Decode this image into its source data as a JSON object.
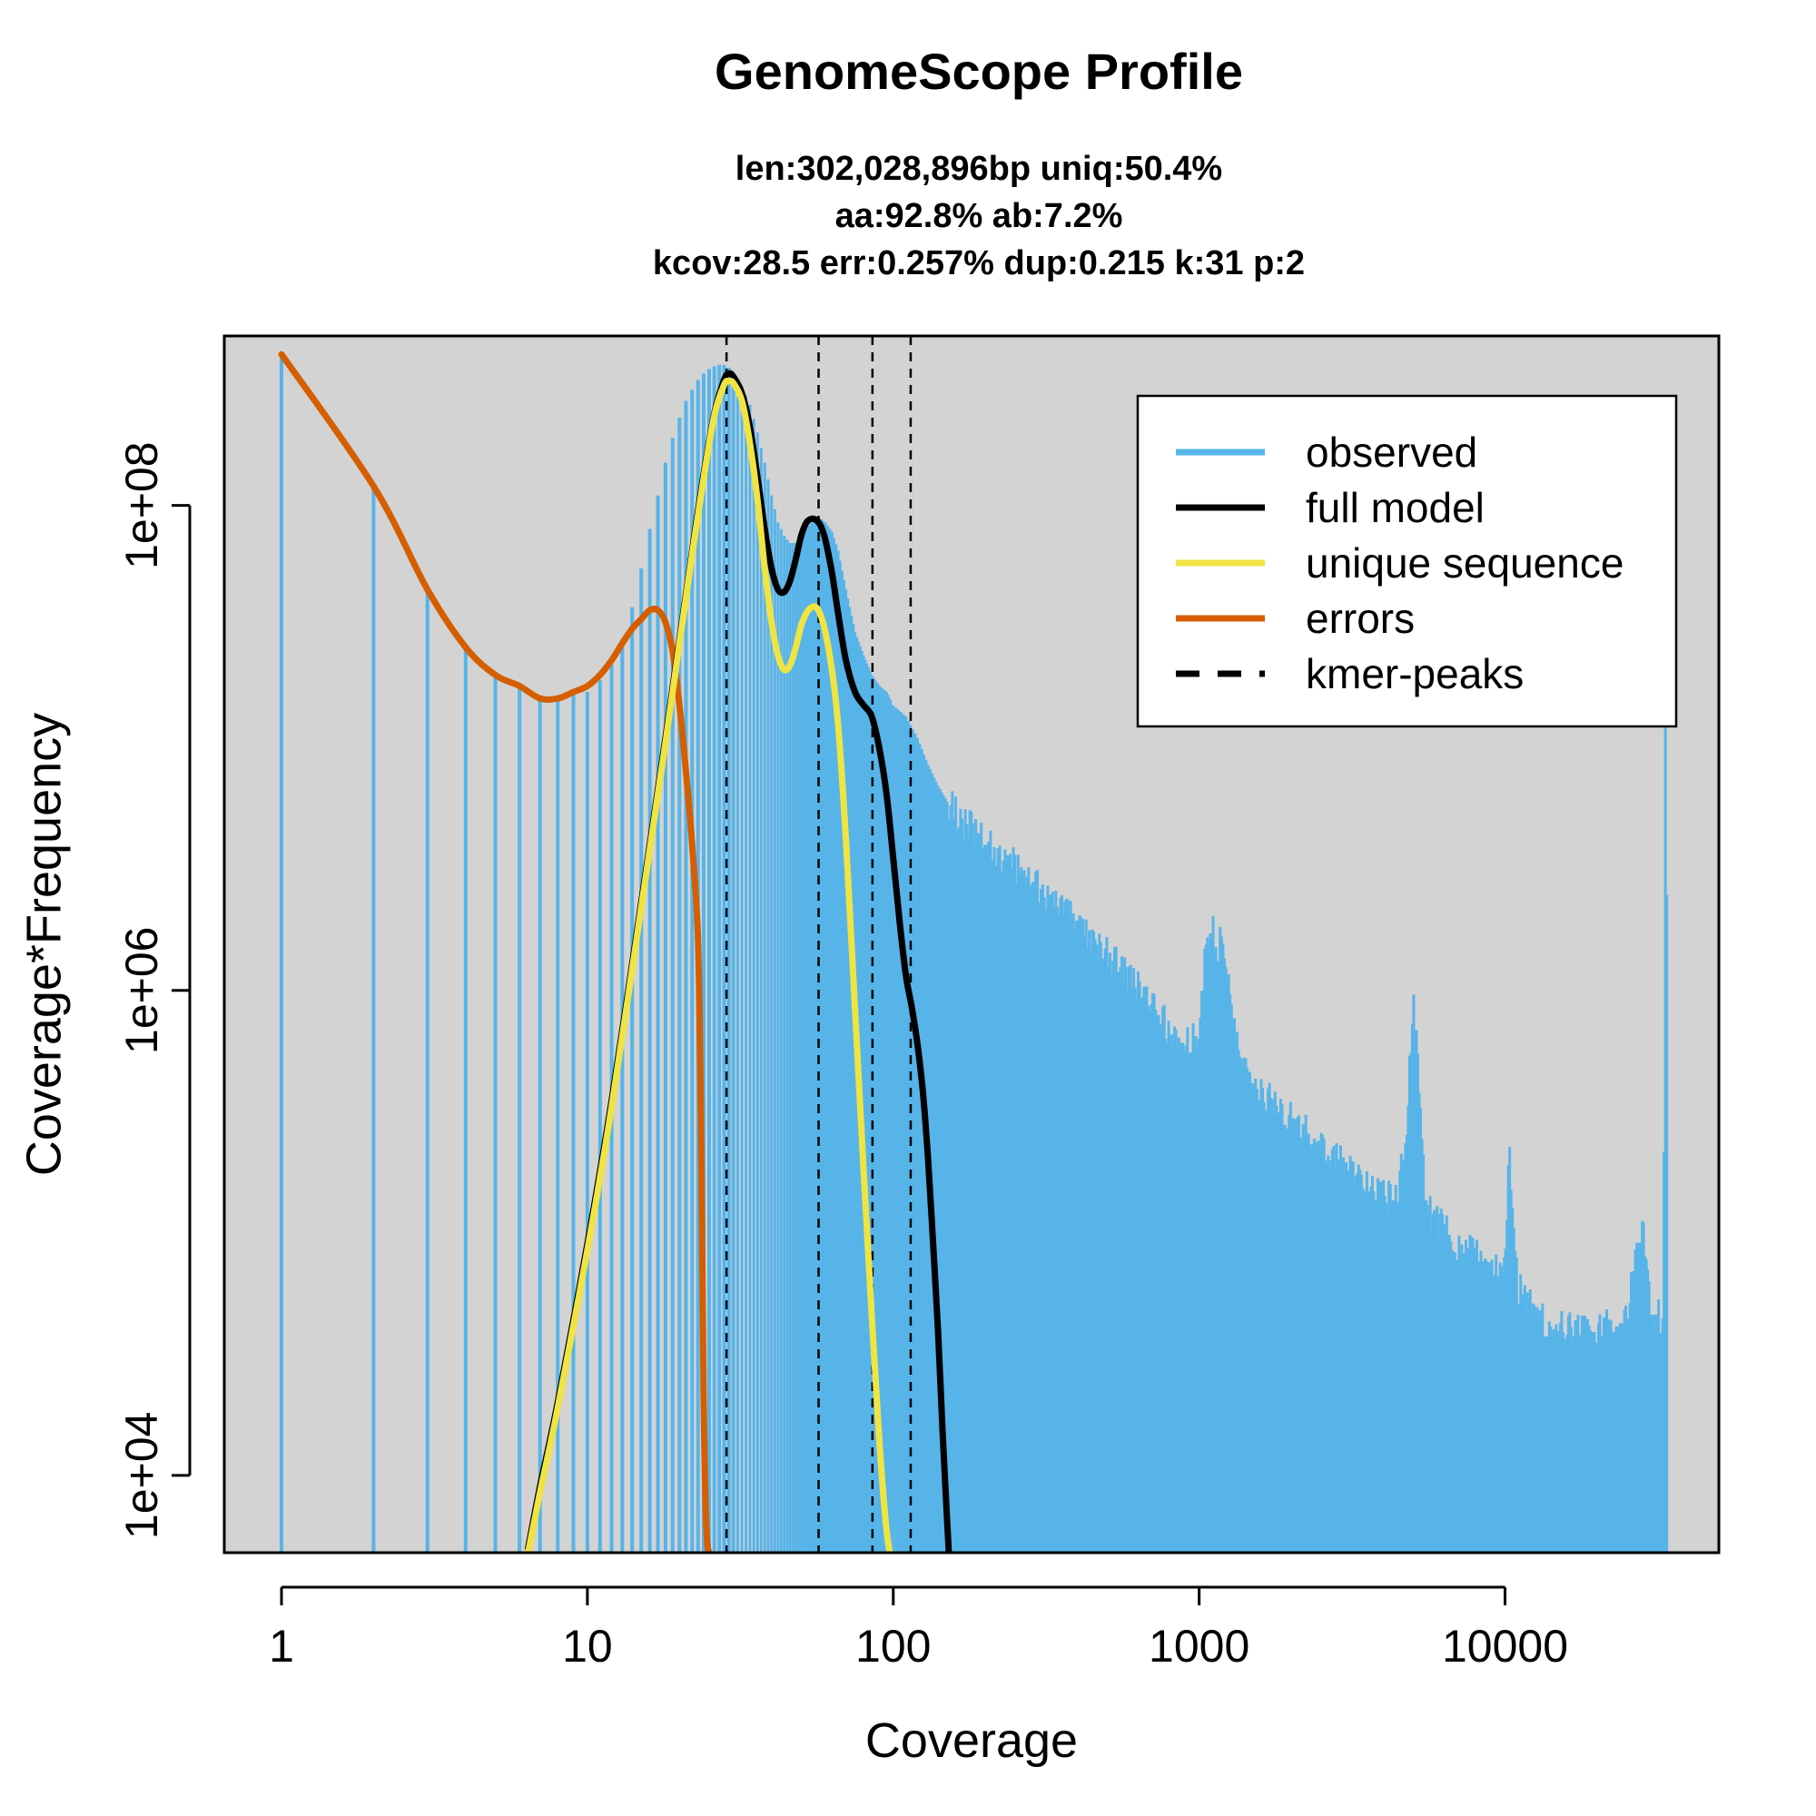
{
  "chart_data": {
    "type": "line",
    "title": "GenomeScope Profile",
    "subtitle_lines": [
      "len:302,028,896bp uniq:50.4%",
      "aa:92.8% ab:7.2%",
      "kcov:28.5 err:0.257%  dup:0.215  k:31 p:2"
    ],
    "xlabel": "Coverage",
    "ylabel": "Coverage*Frequency",
    "x_scale": "log",
    "y_scale": "log",
    "xlim": [
      0.65,
      50000
    ],
    "ylim": [
      4800,
      500000000
    ],
    "x_ticks": [
      1,
      10,
      100,
      1000,
      10000
    ],
    "x_tick_labels": [
      "1",
      "10",
      "100",
      "1000",
      "10000"
    ],
    "y_ticks": [
      10000,
      1000000,
      100000000
    ],
    "y_tick_labels": [
      "1e+04",
      "1e+06",
      "1e+08"
    ],
    "background": "#d3d3d3",
    "legend_position": "top-right",
    "legend": [
      {
        "label": "observed",
        "color": "#56B4E9",
        "style": "solid"
      },
      {
        "label": "full model",
        "color": "#000000",
        "style": "solid"
      },
      {
        "label": "unique sequence",
        "color": "#F0E442",
        "style": "solid"
      },
      {
        "label": "errors",
        "color": "#D55E00",
        "style": "solid"
      },
      {
        "label": "kmer-peaks",
        "color": "#000000",
        "style": "dashed"
      }
    ],
    "kmer_peaks": [
      28.5,
      57,
      85.5,
      114
    ],
    "observed": {
      "color": "#56B4E9",
      "x": [
        1,
        2,
        3,
        4,
        5,
        6,
        7,
        8,
        9,
        10,
        11,
        12,
        13,
        14,
        15,
        16,
        17,
        18,
        19,
        20,
        21,
        22,
        23,
        24,
        25,
        26,
        27,
        28,
        29,
        30,
        32,
        34,
        36,
        38,
        40,
        42,
        44,
        46,
        48,
        50,
        52,
        54,
        56,
        58,
        60,
        63,
        66,
        70,
        75,
        80,
        85,
        90,
        95,
        100,
        110,
        120,
        130,
        140,
        150,
        170,
        200,
        250,
        300,
        400,
        500,
        600,
        700,
        800,
        900,
        1000,
        1050,
        1100,
        1150,
        1200,
        1250,
        1300,
        1400,
        1600,
        2000,
        2500,
        3000,
        3500,
        4000,
        4500,
        4800,
        5000,
        5200,
        5500,
        6000,
        7000,
        8000,
        9000,
        10000,
        10300,
        10600,
        11000,
        12000,
        13000,
        14000,
        15000,
        17000,
        20000,
        25000,
        28000,
        30000,
        32000,
        33000,
        33500,
        34000
      ],
      "y": [
        420000000,
        120000000,
        45000000,
        26000000,
        20000000,
        18000000,
        16000000,
        16000000,
        17000000,
        17000000,
        19000000,
        22000000,
        28000000,
        38000000,
        55000000,
        80000000,
        110000000,
        150000000,
        190000000,
        230000000,
        270000000,
        300000000,
        330000000,
        350000000,
        365000000,
        375000000,
        380000000,
        380000000,
        370000000,
        350000000,
        310000000,
        260000000,
        200000000,
        150000000,
        110000000,
        85000000,
        75000000,
        70000000,
        70000000,
        75000000,
        80000000,
        85000000,
        88000000,
        88000000,
        85000000,
        78000000,
        65000000,
        45000000,
        30000000,
        24000000,
        20000000,
        18000000,
        17000000,
        15000000,
        13500000,
        11000000,
        8500000,
        7000000,
        6000000,
        5000000,
        4000000,
        3300000,
        2600000,
        1900000,
        1400000,
        1100000,
        850000,
        700000,
        600000,
        650000,
        1500000,
        1800000,
        1500000,
        1700000,
        1000000,
        700000,
        480000,
        370000,
        300000,
        230000,
        190000,
        160000,
        140000,
        150000,
        300000,
        900000,
        500000,
        130000,
        110000,
        90000,
        80000,
        70000,
        70000,
        250000,
        110000,
        60000,
        50000,
        45000,
        40000,
        40000,
        40000,
        40000,
        45000,
        110000,
        48000,
        45000,
        40000,
        420000000,
        40000
      ]
    },
    "full_model": {
      "color": "#000000",
      "x": [
        6.4,
        7,
        8,
        10,
        12,
        15,
        18,
        20,
        22,
        24,
        26,
        28,
        29,
        30,
        32,
        34,
        36,
        38,
        40,
        42,
        44,
        46,
        48,
        50,
        52,
        54,
        56,
        58,
        60,
        63,
        66,
        70,
        75,
        80,
        85,
        90,
        95,
        100,
        105,
        110,
        115,
        120,
        125,
        130,
        135,
        140,
        145,
        150,
        155
      ],
      "y": [
        5000,
        9000,
        20000,
        90000,
        350000,
        2300000,
        11000000,
        28000000,
        65000000,
        135000000,
        240000000,
        330000000,
        350000000,
        340000000,
        290000000,
        210000000,
        130000000,
        80000000,
        55000000,
        45000000,
        44000000,
        49000000,
        60000000,
        75000000,
        85000000,
        88000000,
        87000000,
        82000000,
        72000000,
        53000000,
        36000000,
        23000000,
        17000000,
        15000000,
        13500000,
        10000000,
        6500000,
        3500000,
        1900000,
        1150000,
        850000,
        600000,
        380000,
        200000,
        90000,
        40000,
        15000,
        6500,
        3000
      ]
    },
    "unique_sequence": {
      "color": "#F0E442",
      "x": [
        6.4,
        7,
        8,
        10,
        12,
        15,
        18,
        20,
        22,
        24,
        26,
        28,
        29,
        30,
        32,
        34,
        36,
        38,
        40,
        42,
        44,
        46,
        48,
        50,
        52,
        54,
        56,
        58,
        60,
        63,
        66,
        70,
        75,
        80,
        85,
        90,
        95,
        100
      ],
      "y": [
        4800,
        8500,
        19000,
        85000,
        330000,
        2200000,
        10500000,
        27000000,
        63000000,
        130000000,
        235000000,
        315000000,
        325000000,
        320000000,
        270000000,
        180000000,
        105000000,
        55000000,
        33000000,
        24000000,
        21000000,
        22000000,
        26000000,
        32000000,
        36000000,
        38000000,
        38000000,
        35000000,
        30000000,
        21000000,
        12500000,
        4200000,
        830000,
        180000,
        46000,
        14000,
        6000,
        4000
      ]
    },
    "errors": {
      "color": "#D55E00",
      "x": [
        1,
        2,
        3,
        4,
        5,
        6,
        7,
        8,
        9,
        10,
        11,
        12,
        13,
        14,
        15,
        16,
        17,
        18,
        19,
        20,
        21,
        22,
        23,
        23.5,
        24,
        24.5,
        25
      ],
      "y": [
        420000000,
        120000000,
        45000000,
        26000000,
        20000000,
        18000000,
        16000000,
        16000000,
        17000000,
        18000000,
        20000000,
        23000000,
        27000000,
        31000000,
        34000000,
        37000000,
        37000000,
        33000000,
        25000000,
        15000000,
        8000000,
        4000000,
        1600000,
        300000,
        20000,
        6000,
        4800
      ]
    }
  }
}
